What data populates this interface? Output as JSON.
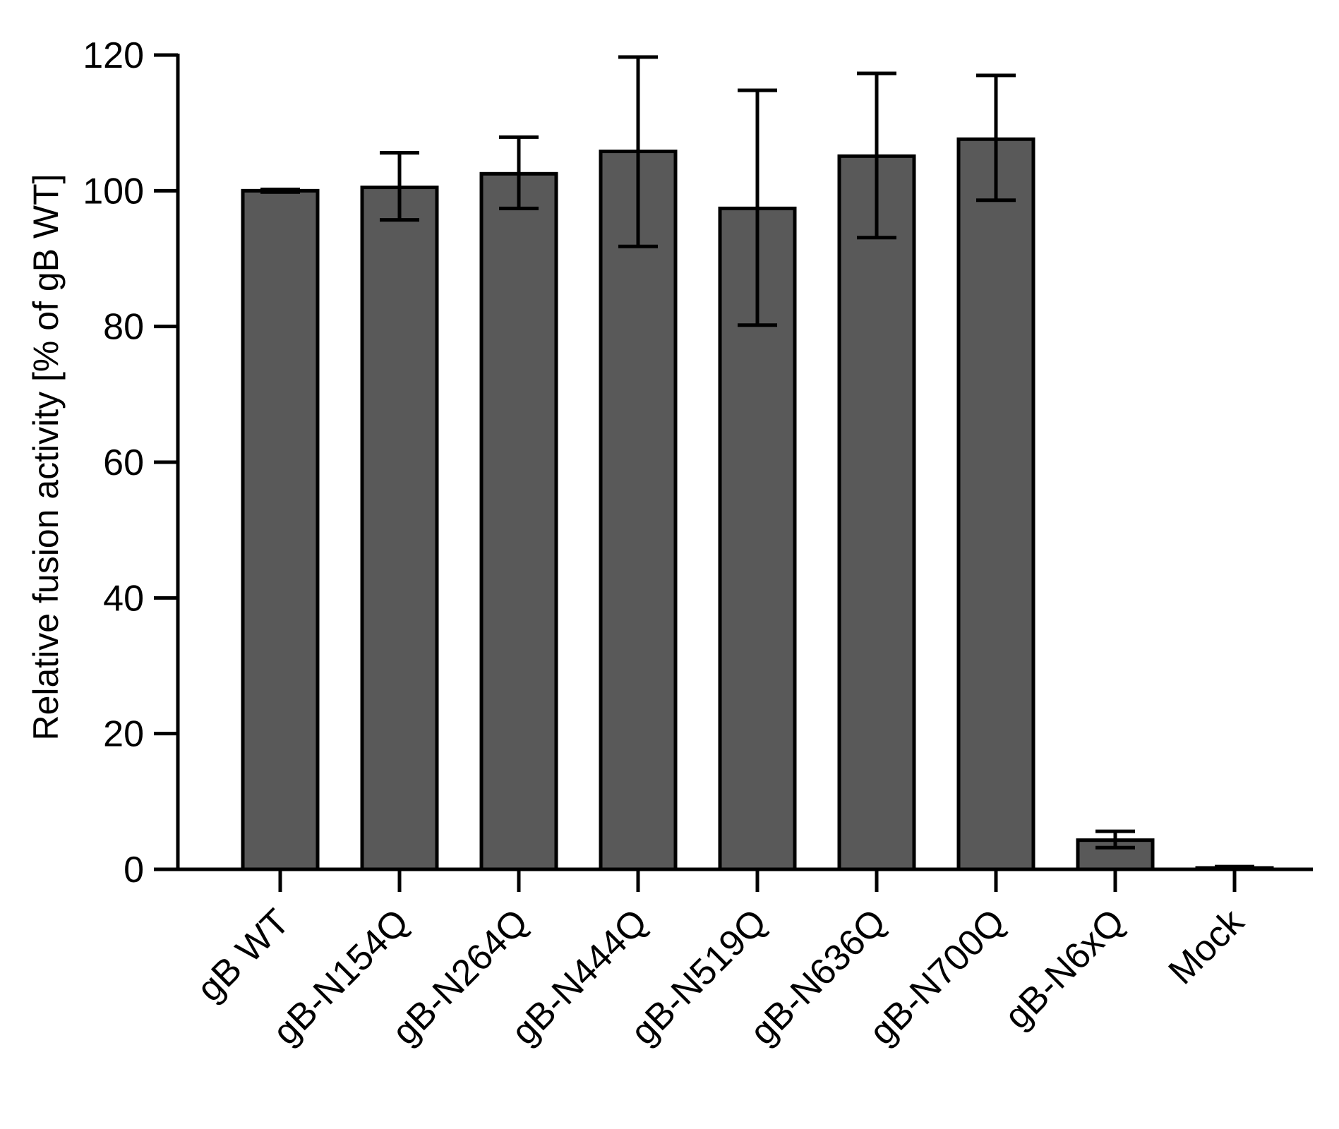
{
  "chart_data": {
    "type": "bar",
    "title": "",
    "xlabel": "",
    "ylabel": "Relative fusion activity [% of gB WT]",
    "ylim": [
      0,
      120
    ],
    "yticks": [
      0,
      20,
      40,
      60,
      80,
      100,
      120
    ],
    "categories": [
      "gB WT",
      "gB-N154Q",
      "gB-N264Q",
      "gB-N444Q",
      "gB-N519Q",
      "gB-N636Q",
      "gB-N700Q",
      "gB-N6xQ",
      "Mock"
    ],
    "values": [
      100.0,
      100.5,
      102.5,
      105.8,
      97.4,
      105.1,
      107.6,
      4.3,
      0.2
    ],
    "error_low": [
      99.8,
      95.7,
      97.4,
      91.8,
      80.2,
      93.1,
      98.6,
      3.2,
      0.1
    ],
    "error_high": [
      100.2,
      105.6,
      107.9,
      119.7,
      114.8,
      117.3,
      117.0,
      5.6,
      0.4
    ],
    "grid": false,
    "legend": "none",
    "colors": {
      "bar_fill": "#595959",
      "bar_edge": "#000000",
      "axis": "#000000"
    }
  }
}
